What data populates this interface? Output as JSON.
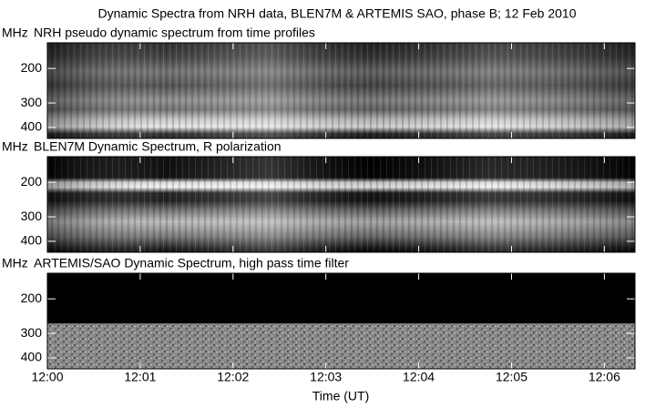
{
  "chart_data": {
    "type": "spectrogram",
    "title": "Dynamic Spectra from NRH data, BLEN7M & ARTEMIS SAO, phase B; 12 Feb 2010",
    "xlabel": "Time (UT)",
    "xlim": [
      0,
      6.33
    ],
    "xticks": [
      {
        "value": 0,
        "label": "12:00"
      },
      {
        "value": 1,
        "label": "12:01"
      },
      {
        "value": 2,
        "label": "12:02"
      },
      {
        "value": 3,
        "label": "12:03"
      },
      {
        "value": 4,
        "label": "12:04"
      },
      {
        "value": 5,
        "label": "12:05"
      },
      {
        "value": 6,
        "label": "12:06"
      }
    ],
    "y_unit": "MHz",
    "ylog": true,
    "y_inverted": true,
    "panels": [
      {
        "subtitle": "NRH pseudo dynamic spectrum from time profiles",
        "ylim": [
          148,
          455
        ],
        "yticks": [
          200,
          300,
          400
        ]
      },
      {
        "subtitle": "BLEN7M Dynamic Spectrum, R polarization",
        "ylim": [
          148,
          455
        ],
        "yticks": [
          200,
          300,
          400
        ]
      },
      {
        "subtitle": "ARTEMIS/SAO Dynamic Spectrum, high pass time filter",
        "ylim": [
          148,
          455
        ],
        "yticks": [
          200,
          300,
          400
        ]
      }
    ]
  }
}
